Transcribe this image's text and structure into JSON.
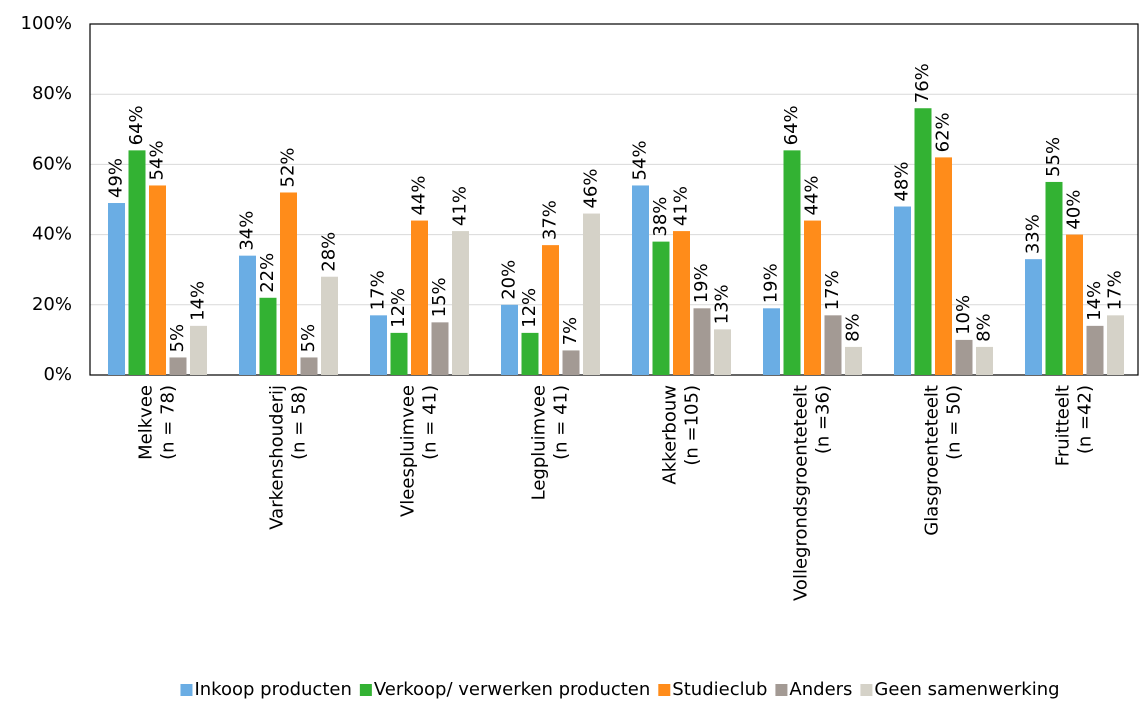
{
  "chart_data": {
    "type": "bar",
    "categories": [
      [
        "Melkvee",
        "(n = 78)"
      ],
      [
        "Varkenshouderij",
        "(n = 58)"
      ],
      [
        "Vleespluimvee",
        "(n = 41)"
      ],
      [
        "Legpluimvee",
        "(n = 41)"
      ],
      [
        "Akkerbouw",
        "(n =105)"
      ],
      [
        "Vollegrondsgroenteteelt",
        "(n =36)"
      ],
      [
        "Glasgroenteteelt",
        "(n = 50)"
      ],
      [
        "Fruitteelt",
        "(n =42)"
      ]
    ],
    "series": [
      {
        "name": "Inkoop producten",
        "color": "#6aade4",
        "values": [
          49,
          34,
          17,
          20,
          54,
          19,
          48,
          33
        ],
        "value_labels": [
          "49%",
          "34%",
          "17%",
          "20%",
          "54%",
          "19%",
          "48%",
          "33%"
        ]
      },
      {
        "name": "Verkoop/ verwerken producten",
        "color": "#33b233",
        "values": [
          64,
          22,
          12,
          12,
          38,
          64,
          76,
          55
        ],
        "value_labels": [
          "64%",
          "22%",
          "12%",
          "12%",
          "38%",
          "64%",
          "76%",
          "55%"
        ]
      },
      {
        "name": "Studieclub",
        "color": "#ff8c1a",
        "values": [
          54,
          52,
          44,
          37,
          41,
          44,
          62,
          40
        ],
        "value_labels": [
          "54%",
          "52%",
          "44%",
          "37%",
          "41%",
          "44%",
          "62%",
          "40%"
        ]
      },
      {
        "name": "Anders",
        "color": "#a39a94",
        "values": [
          5,
          5,
          15,
          7,
          19,
          17,
          10,
          14
        ],
        "value_labels": [
          "5%",
          "5%",
          "15%",
          "7%",
          "19%",
          "17%",
          "10%",
          "14%"
        ]
      },
      {
        "name": "Geen samenwerking",
        "color": "#d5d2c8",
        "values": [
          14,
          28,
          41,
          46,
          13,
          8,
          8,
          17
        ],
        "value_labels": [
          "14%",
          "28%",
          "41%",
          "46%",
          "13%",
          "8%",
          "8%",
          "17%"
        ]
      }
    ],
    "ylim": [
      0,
      100
    ],
    "yticks": [
      {
        "value": 0,
        "label": "0%"
      },
      {
        "value": 20,
        "label": "20%"
      },
      {
        "value": 40,
        "label": "40%"
      },
      {
        "value": 60,
        "label": "60%"
      },
      {
        "value": 80,
        "label": "80%"
      },
      {
        "value": 100,
        "label": "100%"
      }
    ],
    "grid": true,
    "legend": "bottom"
  }
}
